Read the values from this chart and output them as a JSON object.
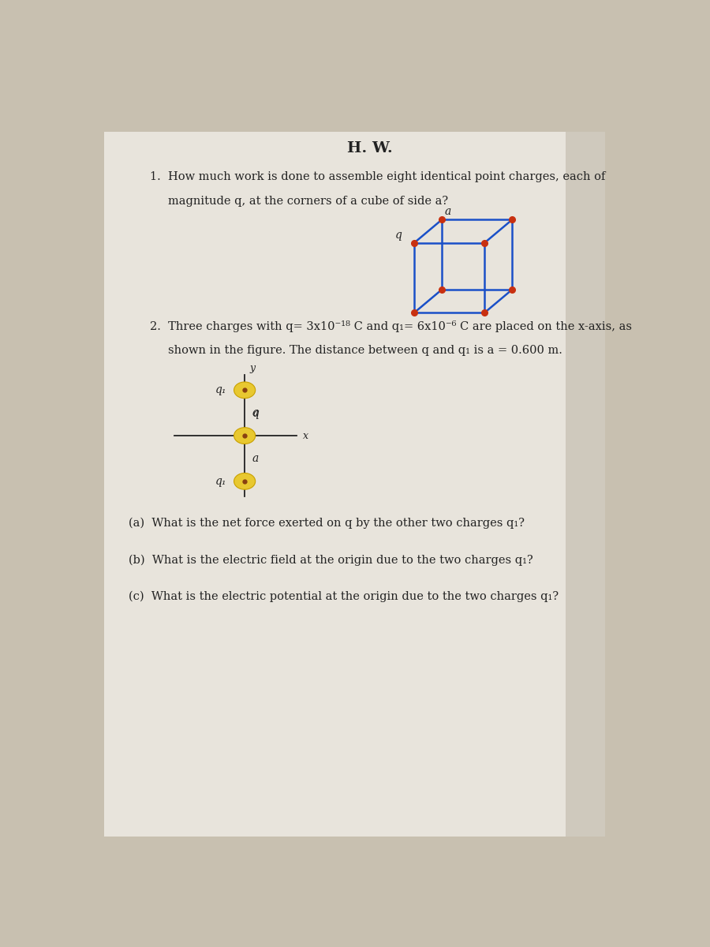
{
  "title": "H. W.",
  "bg_color": "#c8c0b0",
  "paper_color": "#e8e4dc",
  "shadow_color": "#a09888",
  "text_color": "#222222",
  "line1_q1": "1.  How much work is done to assemble eight identical point charges, each of",
  "line2_q1": "magnitude q, at the corners of a cube of side a?",
  "line1_q2": "2.  Three charges with q= 3x10⁻¹⁸ C and q₁= 6x10⁻⁶ C are placed on the x-axis, as",
  "line2_q2": "shown in the figure. The distance between q and q₁ is a = 0.600 m.",
  "qa": "(a)  What is the net force exerted on q by the other two charges q₁?",
  "qb": "(b)  What is the electric field at the origin due to the two charges q₁?",
  "qc": "(c)  What is the electric potential at the origin due to the two charges q₁?",
  "cube_color": "#1a50c8",
  "cube_corner_color": "#c83010",
  "charge_fill": "#e8c830",
  "charge_edge": "#c8a000",
  "charge_dot": "#884010"
}
